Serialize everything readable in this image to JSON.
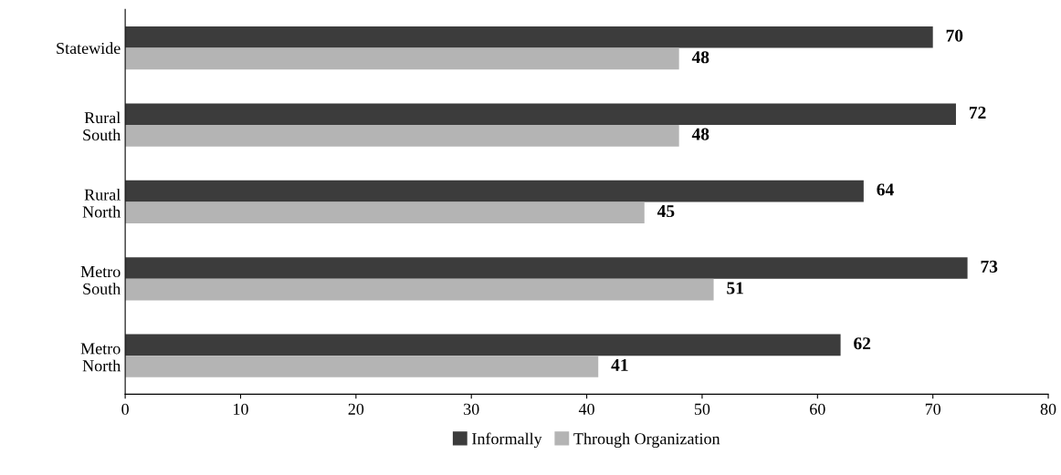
{
  "chart_data": {
    "type": "bar",
    "orientation": "horizontal",
    "categories": [
      "Statewide",
      "Rural\nSouth",
      "Rural\nNorth",
      "Metro\nSouth",
      "Metro\nNorth"
    ],
    "series": [
      {
        "name": "Informally",
        "color": "#3c3c3c",
        "values": [
          70,
          72,
          64,
          73,
          62
        ]
      },
      {
        "name": "Through Organization",
        "color": "#b4b4b4",
        "values": [
          48,
          48,
          45,
          51,
          41
        ]
      }
    ],
    "xlim": [
      0,
      80
    ],
    "xticks": [
      0,
      10,
      20,
      30,
      40,
      50,
      60,
      70,
      80
    ],
    "data_labels": true,
    "legend": "bottom",
    "grid": false
  }
}
